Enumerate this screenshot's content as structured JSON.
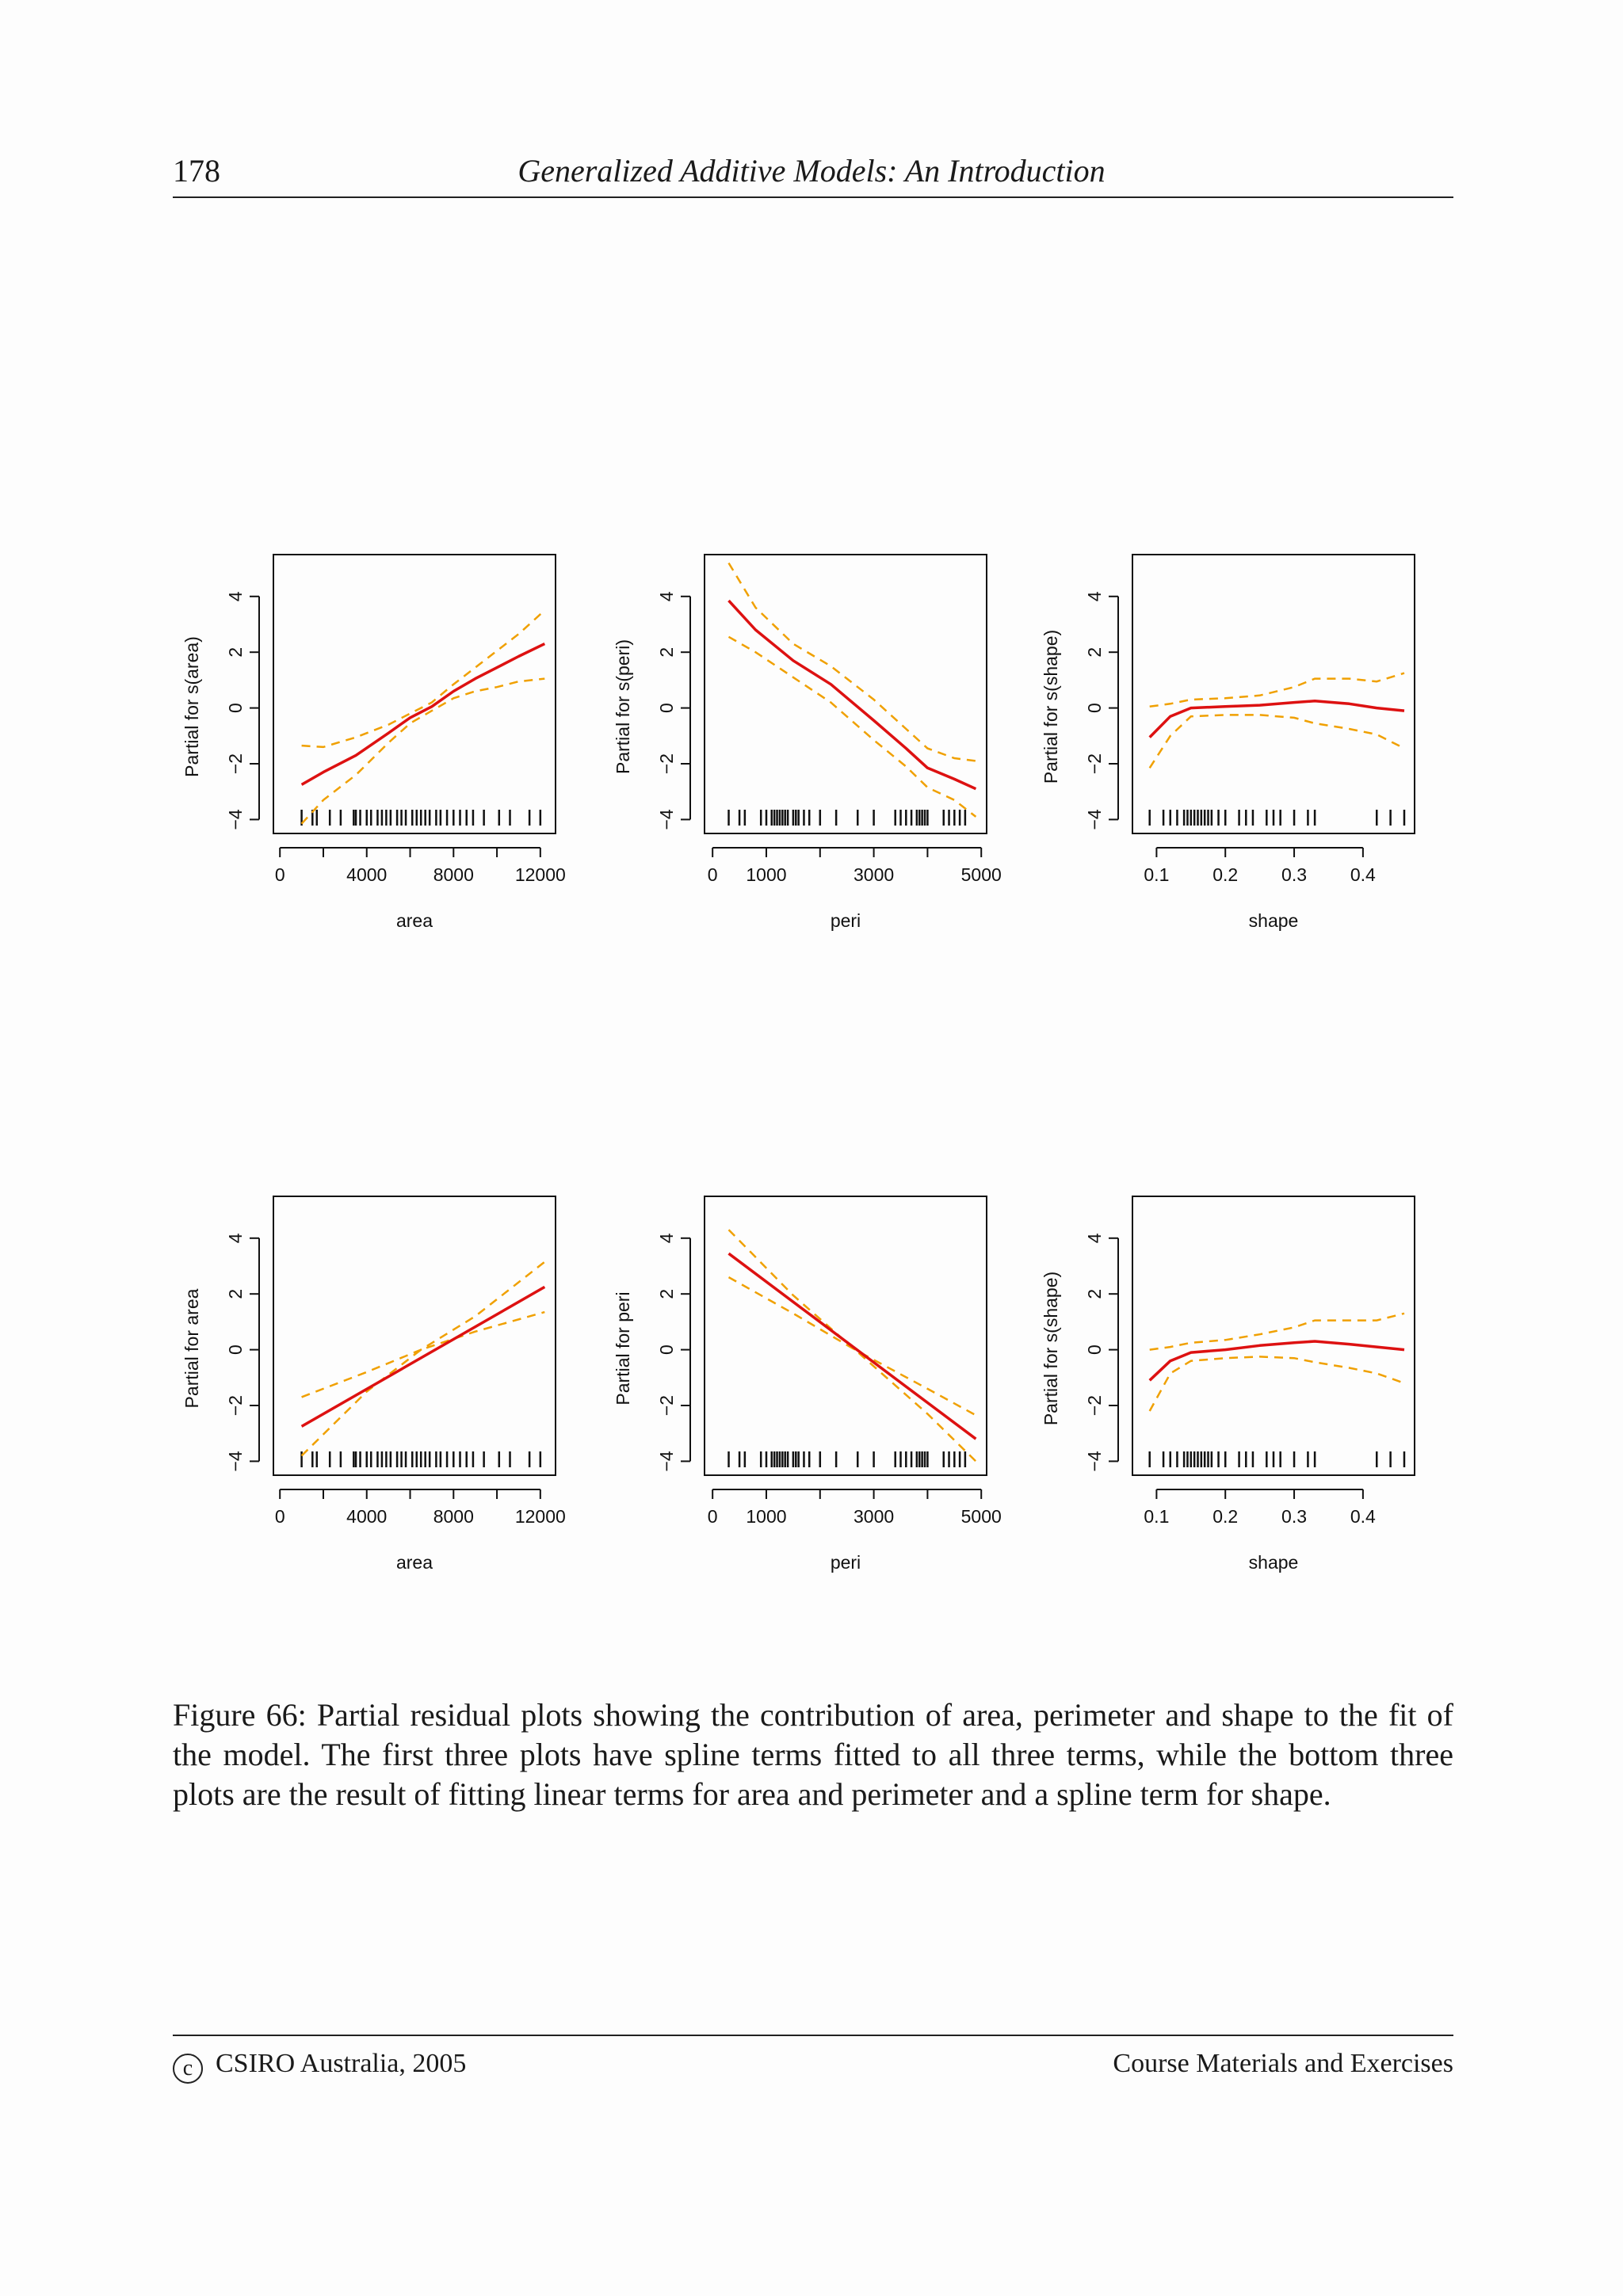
{
  "header": {
    "page_number": "178",
    "running_title": "Generalized Additive Models: An Introduction"
  },
  "caption": "Figure 66: Partial residual plots showing the contribution of area, perimeter and shape to the fit of the model. The first three plots have spline terms fitted to all three terms, while the bottom three plots are the result of fitting linear terms for area and perimeter and a spline term for shape.",
  "footer": {
    "left": "CSIRO Australia, 2005",
    "right": "Course Materials and Exercises"
  },
  "colors": {
    "fit": "#dd1111",
    "band": "#f0a000"
  },
  "chart_data": [
    {
      "type": "line",
      "xlabel": "area",
      "ylabel": "Partial for s(area)",
      "xlim": [
        -300,
        12700
      ],
      "ylim": [
        -4.5,
        5.5
      ],
      "xticks": [
        0,
        2000,
        4000,
        6000,
        8000,
        10000,
        12000
      ],
      "xticklabels": [
        "0",
        "",
        "4000",
        "",
        "8000",
        "",
        "12000"
      ],
      "yticks": [
        -4,
        -2,
        0,
        2,
        4
      ],
      "yticklabels": [
        "−4",
        "−2",
        "0",
        "2",
        "4"
      ],
      "fit": [
        [
          1000,
          -2.75
        ],
        [
          2000,
          -2.3
        ],
        [
          3500,
          -1.7
        ],
        [
          5000,
          -0.9
        ],
        [
          6000,
          -0.35
        ],
        [
          7000,
          0.05
        ],
        [
          8000,
          0.6
        ],
        [
          9000,
          1.05
        ],
        [
          10000,
          1.45
        ],
        [
          11000,
          1.85
        ],
        [
          12200,
          2.3
        ]
      ],
      "band": [
        [
          [
            1000,
            -1.35
          ],
          [
            2000,
            -1.4
          ],
          [
            3500,
            -1.05
          ],
          [
            5000,
            -0.6
          ],
          [
            6000,
            -0.2
          ],
          [
            7000,
            0.2
          ],
          [
            8000,
            0.85
          ],
          [
            9000,
            1.45
          ],
          [
            10000,
            2.05
          ],
          [
            11000,
            2.65
          ],
          [
            12200,
            3.5
          ]
        ],
        [
          [
            1000,
            -4.15
          ],
          [
            2000,
            -3.3
          ],
          [
            3500,
            -2.4
          ],
          [
            5000,
            -1.25
          ],
          [
            6000,
            -0.55
          ],
          [
            7000,
            -0.1
          ],
          [
            8000,
            0.35
          ],
          [
            9000,
            0.6
          ],
          [
            10000,
            0.75
          ],
          [
            11000,
            0.95
          ],
          [
            12200,
            1.05
          ]
        ]
      ],
      "rug": [
        1000,
        1500,
        1700,
        2300,
        2800,
        3400,
        3500,
        3700,
        4000,
        4200,
        4500,
        4700,
        4900,
        5100,
        5400,
        5600,
        5800,
        6100,
        6300,
        6500,
        6700,
        6900,
        7200,
        7400,
        7700,
        8000,
        8300,
        8600,
        8900,
        9400,
        10100,
        10600,
        11500,
        12000
      ]
    },
    {
      "type": "line",
      "xlabel": "peri",
      "ylabel": "Partial for s(peri)",
      "xlim": [
        -150,
        5100
      ],
      "ylim": [
        -4.5,
        5.5
      ],
      "xticks": [
        0,
        1000,
        2000,
        3000,
        4000,
        5000
      ],
      "xticklabels": [
        "0",
        "1000",
        "",
        "3000",
        "",
        "5000"
      ],
      "yticks": [
        -4,
        -2,
        0,
        2,
        4
      ],
      "yticklabels": [
        "−4",
        "−2",
        "0",
        "2",
        "4"
      ],
      "fit": [
        [
          300,
          3.85
        ],
        [
          800,
          2.8
        ],
        [
          1500,
          1.7
        ],
        [
          2200,
          0.85
        ],
        [
          3000,
          -0.45
        ],
        [
          3600,
          -1.45
        ],
        [
          4000,
          -2.15
        ],
        [
          4500,
          -2.55
        ],
        [
          4900,
          -2.9
        ]
      ],
      "band": [
        [
          [
            300,
            5.2
          ],
          [
            800,
            3.6
          ],
          [
            1500,
            2.3
          ],
          [
            2200,
            1.5
          ],
          [
            3000,
            0.3
          ],
          [
            3600,
            -0.75
          ],
          [
            4000,
            -1.45
          ],
          [
            4500,
            -1.8
          ],
          [
            4900,
            -1.9
          ]
        ],
        [
          [
            300,
            2.55
          ],
          [
            800,
            2.0
          ],
          [
            1500,
            1.1
          ],
          [
            2200,
            0.2
          ],
          [
            3000,
            -1.15
          ],
          [
            3600,
            -2.1
          ],
          [
            4000,
            -2.85
          ],
          [
            4500,
            -3.3
          ],
          [
            4900,
            -3.9
          ]
        ]
      ],
      "rug": [
        300,
        500,
        600,
        900,
        1000,
        1100,
        1150,
        1200,
        1250,
        1300,
        1350,
        1400,
        1500,
        1550,
        1600,
        1700,
        1800,
        2000,
        2300,
        2700,
        3000,
        3400,
        3500,
        3600,
        3700,
        3800,
        3850,
        3900,
        3950,
        4000,
        4300,
        4400,
        4500,
        4600,
        4700
      ]
    },
    {
      "type": "line",
      "xlabel": "shape",
      "ylabel": "Partial for s(shape)",
      "xlim": [
        0.065,
        0.475
      ],
      "ylim": [
        -4.5,
        5.5
      ],
      "xticks": [
        0.1,
        0.2,
        0.3,
        0.4
      ],
      "xticklabels": [
        "0.1",
        "0.2",
        "0.3",
        "0.4"
      ],
      "yticks": [
        -4,
        -2,
        0,
        2,
        4
      ],
      "yticklabels": [
        "−4",
        "−2",
        "0",
        "2",
        "4"
      ],
      "fit": [
        [
          0.09,
          -1.05
        ],
        [
          0.12,
          -0.3
        ],
        [
          0.15,
          0.0
        ],
        [
          0.2,
          0.05
        ],
        [
          0.25,
          0.1
        ],
        [
          0.3,
          0.2
        ],
        [
          0.33,
          0.25
        ],
        [
          0.38,
          0.15
        ],
        [
          0.42,
          0.0
        ],
        [
          0.46,
          -0.1
        ]
      ],
      "band": [
        [
          [
            0.09,
            0.05
          ],
          [
            0.12,
            0.15
          ],
          [
            0.15,
            0.3
          ],
          [
            0.2,
            0.35
          ],
          [
            0.25,
            0.45
          ],
          [
            0.3,
            0.75
          ],
          [
            0.33,
            1.05
          ],
          [
            0.38,
            1.05
          ],
          [
            0.42,
            0.95
          ],
          [
            0.46,
            1.25
          ]
        ],
        [
          [
            0.09,
            -2.15
          ],
          [
            0.12,
            -1.0
          ],
          [
            0.15,
            -0.3
          ],
          [
            0.2,
            -0.25
          ],
          [
            0.25,
            -0.25
          ],
          [
            0.3,
            -0.35
          ],
          [
            0.33,
            -0.55
          ],
          [
            0.38,
            -0.75
          ],
          [
            0.42,
            -0.95
          ],
          [
            0.46,
            -1.45
          ]
        ]
      ],
      "rug": [
        0.09,
        0.11,
        0.12,
        0.13,
        0.14,
        0.145,
        0.15,
        0.155,
        0.16,
        0.165,
        0.17,
        0.175,
        0.18,
        0.19,
        0.2,
        0.22,
        0.23,
        0.24,
        0.26,
        0.27,
        0.28,
        0.3,
        0.32,
        0.33,
        0.42,
        0.44,
        0.46
      ]
    },
    {
      "type": "line",
      "xlabel": "area",
      "ylabel": "Partial for area",
      "xlim": [
        -300,
        12700
      ],
      "ylim": [
        -4.5,
        5.5
      ],
      "xticks": [
        0,
        2000,
        4000,
        6000,
        8000,
        10000,
        12000
      ],
      "xticklabels": [
        "0",
        "",
        "4000",
        "",
        "8000",
        "",
        "12000"
      ],
      "yticks": [
        -4,
        -2,
        0,
        2,
        4
      ],
      "yticklabels": [
        "−4",
        "−2",
        "0",
        "2",
        "4"
      ],
      "fit": [
        [
          1000,
          -2.75
        ],
        [
          12200,
          2.25
        ]
      ],
      "band": [
        [
          [
            1000,
            -1.7
          ],
          [
            4000,
            -0.8
          ],
          [
            6500,
            0.0
          ],
          [
            9000,
            1.2
          ],
          [
            12200,
            3.15
          ]
        ],
        [
          [
            1000,
            -3.8
          ],
          [
            4000,
            -1.5
          ],
          [
            6500,
            0.0
          ],
          [
            9000,
            0.65
          ],
          [
            12200,
            1.35
          ]
        ]
      ],
      "rug": [
        1000,
        1500,
        1700,
        2300,
        2800,
        3400,
        3500,
        3700,
        4000,
        4200,
        4500,
        4700,
        4900,
        5100,
        5400,
        5600,
        5800,
        6100,
        6300,
        6500,
        6700,
        6900,
        7200,
        7400,
        7700,
        8000,
        8300,
        8600,
        8900,
        9400,
        10100,
        10600,
        11500,
        12000
      ]
    },
    {
      "type": "line",
      "xlabel": "peri",
      "ylabel": "Partial for peri",
      "xlim": [
        -150,
        5100
      ],
      "ylim": [
        -4.5,
        5.5
      ],
      "xticks": [
        0,
        1000,
        2000,
        3000,
        4000,
        5000
      ],
      "xticklabels": [
        "0",
        "1000",
        "",
        "3000",
        "",
        "5000"
      ],
      "yticks": [
        -4,
        -2,
        0,
        2,
        4
      ],
      "yticklabels": [
        "−4",
        "−2",
        "0",
        "2",
        "4"
      ],
      "fit": [
        [
          300,
          3.45
        ],
        [
          4900,
          -3.2
        ]
      ],
      "band": [
        [
          [
            300,
            4.3
          ],
          [
            1500,
            1.95
          ],
          [
            2650,
            0.0
          ],
          [
            4000,
            -1.4
          ],
          [
            4900,
            -2.35
          ]
        ],
        [
          [
            300,
            2.6
          ],
          [
            1500,
            1.3
          ],
          [
            2650,
            0.0
          ],
          [
            4000,
            -2.3
          ],
          [
            4900,
            -4.0
          ]
        ]
      ],
      "rug": [
        300,
        500,
        600,
        900,
        1000,
        1100,
        1150,
        1200,
        1250,
        1300,
        1350,
        1400,
        1500,
        1550,
        1600,
        1700,
        1800,
        2000,
        2300,
        2700,
        3000,
        3400,
        3500,
        3600,
        3700,
        3800,
        3850,
        3900,
        3950,
        4000,
        4300,
        4400,
        4500,
        4600,
        4700
      ]
    },
    {
      "type": "line",
      "xlabel": "shape",
      "ylabel": "Partial for s(shape)",
      "xlim": [
        0.065,
        0.475
      ],
      "ylim": [
        -4.5,
        5.5
      ],
      "xticks": [
        0.1,
        0.2,
        0.3,
        0.4
      ],
      "xticklabels": [
        "0.1",
        "0.2",
        "0.3",
        "0.4"
      ],
      "yticks": [
        -4,
        -2,
        0,
        2,
        4
      ],
      "yticklabels": [
        "−4",
        "−2",
        "0",
        "2",
        "4"
      ],
      "fit": [
        [
          0.09,
          -1.1
        ],
        [
          0.12,
          -0.4
        ],
        [
          0.15,
          -0.1
        ],
        [
          0.2,
          0.0
        ],
        [
          0.25,
          0.15
        ],
        [
          0.3,
          0.25
        ],
        [
          0.33,
          0.3
        ],
        [
          0.38,
          0.2
        ],
        [
          0.42,
          0.1
        ],
        [
          0.46,
          0.0
        ]
      ],
      "band": [
        [
          [
            0.09,
            0.0
          ],
          [
            0.12,
            0.1
          ],
          [
            0.15,
            0.25
          ],
          [
            0.2,
            0.35
          ],
          [
            0.25,
            0.55
          ],
          [
            0.3,
            0.8
          ],
          [
            0.33,
            1.05
          ],
          [
            0.38,
            1.05
          ],
          [
            0.42,
            1.05
          ],
          [
            0.46,
            1.3
          ]
        ],
        [
          [
            0.09,
            -2.2
          ],
          [
            0.12,
            -0.85
          ],
          [
            0.15,
            -0.4
          ],
          [
            0.2,
            -0.3
          ],
          [
            0.25,
            -0.25
          ],
          [
            0.3,
            -0.3
          ],
          [
            0.33,
            -0.45
          ],
          [
            0.38,
            -0.65
          ],
          [
            0.42,
            -0.85
          ],
          [
            0.46,
            -1.2
          ]
        ]
      ],
      "rug": [
        0.09,
        0.11,
        0.12,
        0.13,
        0.14,
        0.145,
        0.15,
        0.155,
        0.16,
        0.165,
        0.17,
        0.175,
        0.18,
        0.19,
        0.2,
        0.22,
        0.23,
        0.24,
        0.26,
        0.27,
        0.28,
        0.3,
        0.32,
        0.33,
        0.42,
        0.44,
        0.46
      ]
    }
  ]
}
